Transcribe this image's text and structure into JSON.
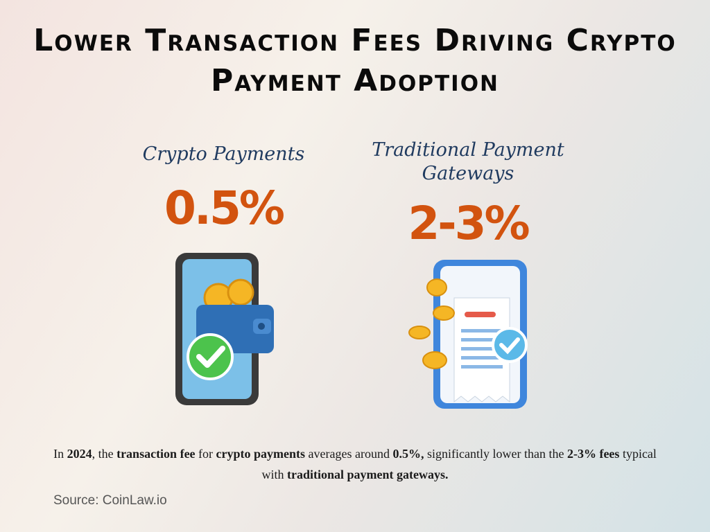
{
  "title": "Lower Transaction Fees Driving Crypto Payment Adoption",
  "cards": [
    {
      "label": "Crypto Payments",
      "value": "0.5%",
      "icon": "phone-wallet-check-icon"
    },
    {
      "label": "Traditional Payment Gateways",
      "value": "2-3%",
      "icon": "phone-receipt-coins-icon"
    }
  ],
  "description": [
    {
      "text": "In ",
      "bold": false
    },
    {
      "text": "2024",
      "bold": true
    },
    {
      "text": ", the ",
      "bold": false
    },
    {
      "text": "transaction fee",
      "bold": true
    },
    {
      "text": " for ",
      "bold": false
    },
    {
      "text": "crypto payments",
      "bold": true
    },
    {
      "text": " averages around ",
      "bold": false
    },
    {
      "text": "0.5%,",
      "bold": true
    },
    {
      "text": " significantly lower than the ",
      "bold": false
    },
    {
      "text": "2-3% fees",
      "bold": true
    },
    {
      "text": " typical with ",
      "bold": false
    },
    {
      "text": "traditional payment gateways.",
      "bold": true
    }
  ],
  "source": "Source: CoinLaw.io",
  "colors": {
    "value": "#d2530f",
    "label": "#1f3a5f",
    "title": "#0b0b0b"
  }
}
